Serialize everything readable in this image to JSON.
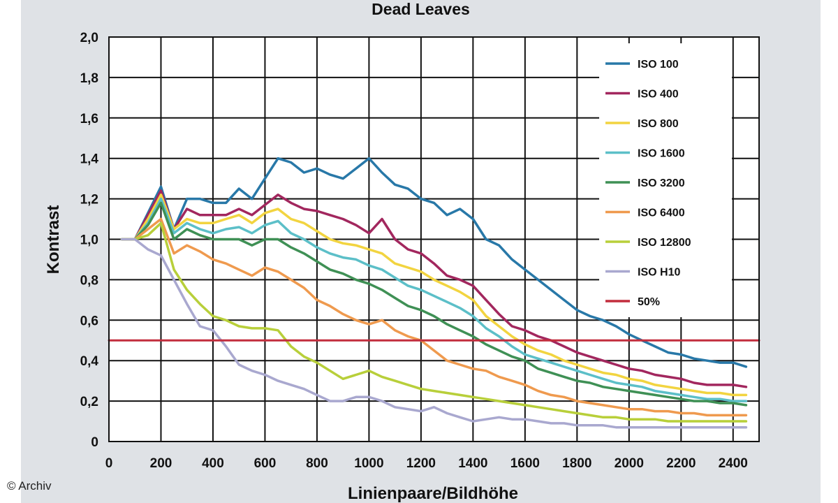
{
  "copyright": "© Archiv",
  "chart_data": {
    "type": "line",
    "title": "Dead Leaves",
    "xlabel": "Linienpaare/Bildhöhe",
    "ylabel": "Kontrast",
    "xlim": [
      0,
      2500
    ],
    "ylim": [
      0,
      2.0
    ],
    "x_ticks": [
      0,
      200,
      400,
      600,
      800,
      1000,
      1200,
      1400,
      1600,
      1800,
      2000,
      2200,
      2400
    ],
    "x_tick_labels": [
      "0",
      "200",
      "400",
      "600",
      "800",
      "1000",
      "1200",
      "1400",
      "1600",
      "1800",
      "2000",
      "2200",
      "2400"
    ],
    "y_ticks": [
      0,
      0.2,
      0.4,
      0.6,
      0.8,
      1.0,
      1.2,
      1.4,
      1.6,
      1.8,
      2.0
    ],
    "y_tick_labels": [
      "0",
      "0,2",
      "0,4",
      "0,6",
      "0,8",
      "1,0",
      "1,2",
      "1,4",
      "1,6",
      "1,8",
      "2,0"
    ],
    "grid": true,
    "legend_position": "top-right",
    "series": [
      {
        "name": "ISO 100",
        "color": "#2878a8",
        "x": [
          50,
          100,
          150,
          200,
          250,
          300,
          350,
          400,
          450,
          500,
          550,
          600,
          650,
          700,
          750,
          800,
          850,
          900,
          950,
          1000,
          1050,
          1100,
          1150,
          1200,
          1250,
          1300,
          1350,
          1400,
          1450,
          1500,
          1550,
          1600,
          1650,
          1700,
          1750,
          1800,
          1850,
          1900,
          1950,
          2000,
          2050,
          2100,
          2150,
          2200,
          2250,
          2300,
          2350,
          2400,
          2450
        ],
        "y": [
          1.0,
          1.0,
          1.13,
          1.26,
          1.05,
          1.2,
          1.2,
          1.18,
          1.18,
          1.25,
          1.2,
          1.3,
          1.4,
          1.38,
          1.33,
          1.35,
          1.32,
          1.3,
          1.35,
          1.4,
          1.33,
          1.27,
          1.25,
          1.2,
          1.18,
          1.12,
          1.15,
          1.1,
          1.0,
          0.97,
          0.9,
          0.85,
          0.8,
          0.75,
          0.7,
          0.65,
          0.62,
          0.6,
          0.57,
          0.53,
          0.5,
          0.47,
          0.44,
          0.43,
          0.41,
          0.4,
          0.39,
          0.39,
          0.37
        ]
      },
      {
        "name": "ISO 400",
        "color": "#a2275e",
        "x": [
          50,
          100,
          150,
          200,
          250,
          300,
          350,
          400,
          450,
          500,
          550,
          600,
          650,
          700,
          750,
          800,
          850,
          900,
          950,
          1000,
          1050,
          1100,
          1150,
          1200,
          1250,
          1300,
          1350,
          1400,
          1450,
          1500,
          1550,
          1600,
          1650,
          1700,
          1750,
          1800,
          1850,
          1900,
          1950,
          2000,
          2050,
          2100,
          2150,
          2200,
          2250,
          2300,
          2350,
          2400,
          2450
        ],
        "y": [
          1.0,
          1.0,
          1.12,
          1.24,
          1.05,
          1.15,
          1.12,
          1.12,
          1.12,
          1.15,
          1.12,
          1.17,
          1.22,
          1.18,
          1.15,
          1.14,
          1.12,
          1.1,
          1.07,
          1.03,
          1.1,
          1.0,
          0.95,
          0.93,
          0.88,
          0.82,
          0.8,
          0.77,
          0.7,
          0.63,
          0.57,
          0.55,
          0.52,
          0.5,
          0.47,
          0.44,
          0.42,
          0.4,
          0.38,
          0.36,
          0.35,
          0.33,
          0.32,
          0.31,
          0.29,
          0.28,
          0.28,
          0.28,
          0.27
        ]
      },
      {
        "name": "ISO 800",
        "color": "#f2d440",
        "x": [
          50,
          100,
          150,
          200,
          250,
          300,
          350,
          400,
          450,
          500,
          550,
          600,
          650,
          700,
          750,
          800,
          850,
          900,
          950,
          1000,
          1050,
          1100,
          1150,
          1200,
          1250,
          1300,
          1350,
          1400,
          1450,
          1500,
          1550,
          1600,
          1650,
          1700,
          1750,
          1800,
          1850,
          1900,
          1950,
          2000,
          2050,
          2100,
          2150,
          2200,
          2250,
          2300,
          2350,
          2400,
          2450
        ],
        "y": [
          1.0,
          1.0,
          1.1,
          1.22,
          1.05,
          1.1,
          1.08,
          1.08,
          1.1,
          1.12,
          1.08,
          1.13,
          1.15,
          1.1,
          1.08,
          1.04,
          1.0,
          0.98,
          0.97,
          0.95,
          0.93,
          0.88,
          0.86,
          0.84,
          0.8,
          0.77,
          0.74,
          0.7,
          0.62,
          0.57,
          0.52,
          0.48,
          0.45,
          0.43,
          0.4,
          0.38,
          0.36,
          0.34,
          0.33,
          0.31,
          0.3,
          0.28,
          0.27,
          0.26,
          0.25,
          0.24,
          0.24,
          0.23,
          0.23
        ]
      },
      {
        "name": "ISO 1600",
        "color": "#5cbfc8",
        "x": [
          50,
          100,
          150,
          200,
          250,
          300,
          350,
          400,
          450,
          500,
          550,
          600,
          650,
          700,
          750,
          800,
          850,
          900,
          950,
          1000,
          1050,
          1100,
          1150,
          1200,
          1250,
          1300,
          1350,
          1400,
          1450,
          1500,
          1550,
          1600,
          1650,
          1700,
          1750,
          1800,
          1850,
          1900,
          1950,
          2000,
          2050,
          2100,
          2150,
          2200,
          2250,
          2300,
          2350,
          2400,
          2450
        ],
        "y": [
          1.0,
          1.0,
          1.08,
          1.2,
          1.03,
          1.08,
          1.05,
          1.03,
          1.05,
          1.06,
          1.03,
          1.07,
          1.09,
          1.03,
          1.0,
          0.96,
          0.93,
          0.91,
          0.9,
          0.87,
          0.85,
          0.81,
          0.77,
          0.75,
          0.72,
          0.69,
          0.66,
          0.62,
          0.56,
          0.52,
          0.47,
          0.43,
          0.41,
          0.39,
          0.37,
          0.35,
          0.33,
          0.31,
          0.29,
          0.28,
          0.27,
          0.25,
          0.24,
          0.23,
          0.22,
          0.21,
          0.21,
          0.2,
          0.2
        ]
      },
      {
        "name": "ISO 3200",
        "color": "#3f9055",
        "x": [
          50,
          100,
          150,
          200,
          250,
          300,
          350,
          400,
          450,
          500,
          550,
          600,
          650,
          700,
          750,
          800,
          850,
          900,
          950,
          1000,
          1050,
          1100,
          1150,
          1200,
          1250,
          1300,
          1350,
          1400,
          1450,
          1500,
          1550,
          1600,
          1650,
          1700,
          1750,
          1800,
          1850,
          1900,
          1950,
          2000,
          2050,
          2100,
          2150,
          2200,
          2250,
          2300,
          2350,
          2400,
          2450
        ],
        "y": [
          1.0,
          1.0,
          1.07,
          1.18,
          1.0,
          1.05,
          1.02,
          1.0,
          1.0,
          1.0,
          0.97,
          1.0,
          1.0,
          0.96,
          0.93,
          0.89,
          0.85,
          0.83,
          0.8,
          0.78,
          0.75,
          0.71,
          0.67,
          0.65,
          0.62,
          0.58,
          0.55,
          0.52,
          0.48,
          0.45,
          0.42,
          0.4,
          0.36,
          0.34,
          0.32,
          0.3,
          0.29,
          0.27,
          0.26,
          0.25,
          0.24,
          0.23,
          0.22,
          0.21,
          0.2,
          0.2,
          0.19,
          0.19,
          0.18
        ]
      },
      {
        "name": "ISO 6400",
        "color": "#ef9a4e",
        "x": [
          50,
          100,
          150,
          200,
          250,
          300,
          350,
          400,
          450,
          500,
          550,
          600,
          650,
          700,
          750,
          800,
          850,
          900,
          950,
          1000,
          1050,
          1100,
          1150,
          1200,
          1250,
          1300,
          1350,
          1400,
          1450,
          1500,
          1550,
          1600,
          1650,
          1700,
          1750,
          1800,
          1850,
          1900,
          1950,
          2000,
          2050,
          2100,
          2150,
          2200,
          2250,
          2300,
          2350,
          2400,
          2450
        ],
        "y": [
          1.0,
          1.0,
          1.05,
          1.1,
          0.93,
          0.97,
          0.94,
          0.9,
          0.88,
          0.85,
          0.82,
          0.86,
          0.84,
          0.8,
          0.76,
          0.7,
          0.67,
          0.63,
          0.6,
          0.58,
          0.6,
          0.55,
          0.52,
          0.5,
          0.45,
          0.4,
          0.38,
          0.36,
          0.35,
          0.32,
          0.3,
          0.28,
          0.25,
          0.23,
          0.22,
          0.2,
          0.19,
          0.18,
          0.17,
          0.16,
          0.16,
          0.15,
          0.15,
          0.14,
          0.14,
          0.13,
          0.13,
          0.13,
          0.13
        ]
      },
      {
        "name": "ISO 12800",
        "color": "#b8cf3a",
        "x": [
          50,
          100,
          150,
          200,
          250,
          300,
          350,
          400,
          450,
          500,
          550,
          600,
          650,
          700,
          750,
          800,
          850,
          900,
          950,
          1000,
          1050,
          1100,
          1150,
          1200,
          1250,
          1300,
          1350,
          1400,
          1450,
          1500,
          1550,
          1600,
          1650,
          1700,
          1750,
          1800,
          1850,
          1900,
          1950,
          2000,
          2050,
          2100,
          2150,
          2200,
          2250,
          2300,
          2350,
          2400,
          2450
        ],
        "y": [
          1.0,
          1.0,
          1.02,
          1.08,
          0.85,
          0.75,
          0.68,
          0.62,
          0.6,
          0.57,
          0.56,
          0.56,
          0.55,
          0.47,
          0.42,
          0.39,
          0.35,
          0.31,
          0.33,
          0.35,
          0.32,
          0.3,
          0.28,
          0.26,
          0.25,
          0.24,
          0.23,
          0.22,
          0.21,
          0.2,
          0.19,
          0.18,
          0.17,
          0.16,
          0.15,
          0.14,
          0.13,
          0.12,
          0.12,
          0.11,
          0.11,
          0.11,
          0.1,
          0.1,
          0.1,
          0.1,
          0.1,
          0.1,
          0.1
        ]
      },
      {
        "name": "ISO H10",
        "color": "#a9a8cf",
        "x": [
          50,
          100,
          150,
          200,
          250,
          300,
          350,
          400,
          450,
          500,
          550,
          600,
          650,
          700,
          750,
          800,
          850,
          900,
          950,
          1000,
          1050,
          1100,
          1150,
          1200,
          1250,
          1300,
          1350,
          1400,
          1450,
          1500,
          1550,
          1600,
          1650,
          1700,
          1750,
          1800,
          1850,
          1900,
          1950,
          2000,
          2050,
          2100,
          2150,
          2200,
          2250,
          2300,
          2350,
          2400,
          2450
        ],
        "y": [
          1.0,
          1.0,
          0.95,
          0.92,
          0.8,
          0.68,
          0.57,
          0.55,
          0.47,
          0.38,
          0.35,
          0.33,
          0.3,
          0.28,
          0.26,
          0.23,
          0.2,
          0.2,
          0.22,
          0.22,
          0.2,
          0.17,
          0.16,
          0.15,
          0.17,
          0.14,
          0.12,
          0.1,
          0.11,
          0.12,
          0.11,
          0.11,
          0.1,
          0.09,
          0.09,
          0.08,
          0.08,
          0.08,
          0.07,
          0.07,
          0.07,
          0.07,
          0.07,
          0.07,
          0.07,
          0.07,
          0.07,
          0.07,
          0.07
        ]
      },
      {
        "name": "50%",
        "color": "#c22d3d",
        "x": [
          0,
          2500
        ],
        "y": [
          0.5,
          0.5
        ]
      }
    ]
  }
}
